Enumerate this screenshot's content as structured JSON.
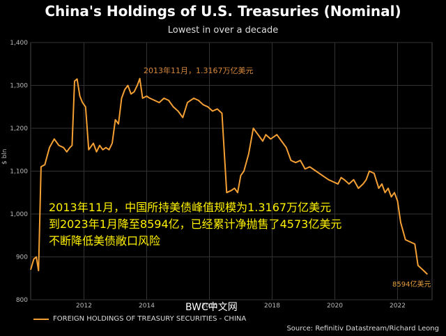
{
  "chart_data": {
    "type": "line",
    "title": "China's Holdings of U.S. Treasuries (Nominal)",
    "subtitle": "Lowest in over a decade",
    "ylabel": "$ bln",
    "ylim": [
      800,
      1400
    ],
    "yticks": [
      "800",
      "900",
      "1,000",
      "1,100",
      "1,200",
      "1,300",
      "1,400"
    ],
    "xlim": [
      2010.3,
      2023.1
    ],
    "xticks": [
      "2012",
      "2014",
      "2016",
      "2018",
      "2020",
      "2022"
    ],
    "grid": true,
    "line_color": "#f5a033",
    "series": [
      {
        "name": "FOREIGN HOLDINGS OF TREASURY SECURITIES - CHINA",
        "x": [
          2010.3,
          2010.4,
          2010.48,
          2010.55,
          2010.63,
          2010.75,
          2010.9,
          2011.05,
          2011.2,
          2011.35,
          2011.45,
          2011.55,
          2011.62,
          2011.7,
          2011.78,
          2011.87,
          2011.95,
          2012.05,
          2012.15,
          2012.3,
          2012.4,
          2012.5,
          2012.6,
          2012.7,
          2012.8,
          2012.9,
          2013.0,
          2013.1,
          2013.2,
          2013.3,
          2013.4,
          2013.5,
          2013.6,
          2013.7,
          2013.78,
          2013.87,
          2014.0,
          2014.1,
          2014.25,
          2014.4,
          2014.55,
          2014.7,
          2014.85,
          2015.0,
          2015.15,
          2015.3,
          2015.5,
          2015.65,
          2015.8,
          2015.95,
          2016.1,
          2016.25,
          2016.4,
          2016.55,
          2016.7,
          2016.8,
          2016.9,
          2017.0,
          2017.1,
          2017.25,
          2017.4,
          2017.55,
          2017.7,
          2017.8,
          2017.95,
          2018.05,
          2018.15,
          2018.3,
          2018.45,
          2018.6,
          2018.75,
          2018.9,
          2019.05,
          2019.2,
          2019.4,
          2019.6,
          2019.8,
          2019.95,
          2020.1,
          2020.2,
          2020.3,
          2020.45,
          2020.6,
          2020.75,
          2020.9,
          2021.0,
          2021.1,
          2021.25,
          2021.4,
          2021.5,
          2021.6,
          2021.7,
          2021.8,
          2021.9,
          2022.0,
          2022.1,
          2022.25,
          2022.4,
          2022.55,
          2022.65,
          2022.8,
          2022.95
        ],
        "y": [
          870,
          895,
          900,
          868,
          1110,
          1115,
          1155,
          1175,
          1160,
          1155,
          1145,
          1155,
          1160,
          1310,
          1315,
          1275,
          1260,
          1250,
          1150,
          1165,
          1145,
          1160,
          1150,
          1155,
          1150,
          1165,
          1220,
          1210,
          1270,
          1290,
          1300,
          1280,
          1285,
          1300,
          1316,
          1270,
          1275,
          1270,
          1265,
          1260,
          1270,
          1265,
          1250,
          1240,
          1225,
          1260,
          1270,
          1265,
          1255,
          1250,
          1240,
          1245,
          1235,
          1050,
          1055,
          1060,
          1050,
          1090,
          1100,
          1140,
          1200,
          1185,
          1170,
          1185,
          1175,
          1180,
          1185,
          1170,
          1155,
          1125,
          1120,
          1125,
          1105,
          1110,
          1100,
          1090,
          1080,
          1075,
          1070,
          1085,
          1080,
          1070,
          1080,
          1060,
          1070,
          1080,
          1100,
          1095,
          1060,
          1070,
          1050,
          1060,
          1040,
          1050,
          1030,
          980,
          940,
          935,
          930,
          880,
          870,
          859.4
        ]
      }
    ],
    "annotations": {
      "peak": "2013年11月，1.3167万亿美元",
      "end": "8594亿美元"
    }
  },
  "overlay_text": {
    "line1": "2013年11月，中国所持美债峰值规模为1.3167万亿美元",
    "line2": "到2023年1月降至8594亿，已经累计净抛售了4573亿美元",
    "line3": "不断降低美债敞口风险"
  },
  "watermark": "BWC中文网",
  "source": "Source: Refinitiv Datastream/Richard Leong"
}
